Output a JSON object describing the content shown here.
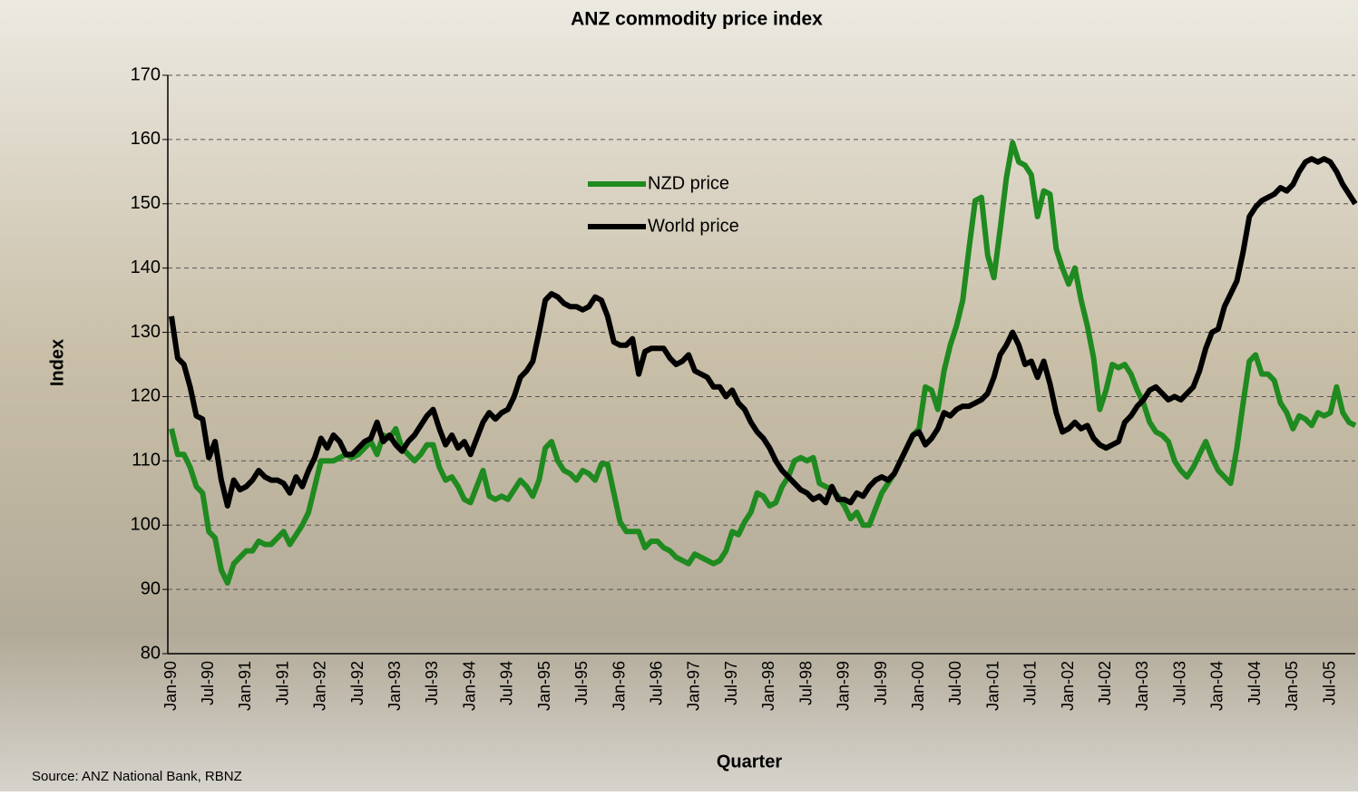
{
  "chart_data": {
    "type": "line",
    "title": "ANZ commodity price index",
    "xlabel": "Quarter",
    "ylabel": "Index",
    "source": "Source: ANZ National Bank, RBNZ",
    "categories": [
      "Jan-90",
      null,
      null,
      null,
      null,
      null,
      "Jul-90",
      null,
      null,
      null,
      null,
      null,
      "Jan-91",
      null,
      null,
      null,
      null,
      null,
      "Jul-91",
      null,
      null,
      null,
      null,
      null,
      "Jan-92",
      null,
      null,
      null,
      null,
      null,
      "Jul-92",
      null,
      null,
      null,
      null,
      null,
      "Jan-93",
      null,
      null,
      null,
      null,
      null,
      "Jul-93",
      null,
      null,
      null,
      null,
      null,
      "Jan-94",
      null,
      null,
      null,
      null,
      null,
      "Jul-94",
      null,
      null,
      null,
      null,
      null,
      "Jan-95",
      null,
      null,
      null,
      null,
      null,
      "Jul-95",
      null,
      null,
      null,
      null,
      null,
      "Jan-96",
      null,
      null,
      null,
      null,
      null,
      "Jul-96",
      null,
      null,
      null,
      null,
      null,
      "Jan-97",
      null,
      null,
      null,
      null,
      null,
      "Jul-97",
      null,
      null,
      null,
      null,
      null,
      "Jan-98",
      null,
      null,
      null,
      null,
      null,
      "Jul-98",
      null,
      null,
      null,
      null,
      null,
      "Jan-99",
      null,
      null,
      null,
      null,
      null,
      "Jul-99",
      null,
      null,
      null,
      null,
      null,
      "Jan-00",
      null,
      null,
      null,
      null,
      null,
      "Jul-00",
      null,
      null,
      null,
      null,
      null,
      "Jan-01",
      null,
      null,
      null,
      null,
      null,
      "Jul-01",
      null,
      null,
      null,
      null,
      null,
      "Jan-02",
      null,
      null,
      null,
      null,
      null,
      "Jul-02",
      null,
      null,
      null,
      null,
      null,
      "Jan-03",
      null,
      null,
      null,
      null,
      null,
      "Jul-03",
      null,
      null,
      null,
      null,
      null,
      "Jan-04",
      null,
      null,
      null,
      null,
      null,
      "Jul-04",
      null,
      null,
      null,
      null,
      null,
      "Jan-05",
      null,
      null,
      null,
      null,
      null,
      "Jul-05",
      null,
      null,
      null,
      null
    ],
    "series": [
      {
        "name": "NZD price",
        "color": "#1f8a1f",
        "values": [
          115,
          111,
          111,
          109,
          106,
          105,
          99,
          98,
          93,
          91,
          94,
          95,
          96,
          96,
          97.5,
          97,
          97,
          98,
          99,
          97,
          98.5,
          100,
          102,
          106,
          110,
          110,
          110,
          110.5,
          111,
          110.5,
          111,
          112,
          113,
          111,
          114,
          113.5,
          115,
          112,
          111,
          110,
          111,
          112.5,
          112.5,
          109,
          107,
          107.5,
          106,
          104,
          103.5,
          106,
          108.5,
          104.5,
          104,
          104.5,
          104,
          105.5,
          107,
          106,
          104.5,
          107,
          112,
          113,
          110,
          108.5,
          108,
          107,
          108.5,
          108,
          107,
          109.5,
          109.5,
          105,
          100.5,
          99,
          99,
          99,
          96.5,
          97.5,
          97.5,
          96.5,
          96,
          95,
          94.5,
          94,
          95.5,
          95,
          94.5,
          94,
          94.5,
          96,
          99,
          98.5,
          100.5,
          102,
          105,
          104.5,
          103,
          103.5,
          106,
          107.5,
          110,
          110.5,
          110,
          110.5,
          106.5,
          106,
          105.5,
          104.5,
          103,
          101,
          102,
          100,
          100,
          102.5,
          105,
          106.5,
          108,
          110,
          112,
          114,
          115,
          121.5,
          121,
          118,
          124,
          128,
          131,
          135,
          143,
          150.5,
          151,
          142,
          138.5,
          146,
          154,
          159.5,
          156.5,
          156,
          154.5,
          148,
          152,
          151.5,
          143,
          140,
          137.5,
          140,
          135,
          131,
          126,
          118,
          121,
          125,
          124.5,
          125,
          123.5,
          121,
          119,
          116,
          114.5,
          114,
          113,
          110,
          108.5,
          107.5,
          109,
          111,
          113,
          110.5,
          108.5,
          107.5,
          106.5,
          112,
          119,
          125.5,
          126.5,
          123.5,
          123.5,
          122.5,
          119,
          117.5,
          115,
          117,
          116.5,
          115.5,
          117.5,
          117,
          117.5,
          121.5,
          117.5,
          116,
          115.5
        ]
      },
      {
        "name": "World price",
        "color": "#000000",
        "values": [
          132.5,
          126,
          125,
          121.5,
          117,
          116.5,
          110.5,
          113,
          107,
          103,
          107,
          105.5,
          106,
          107,
          108.5,
          107.5,
          107,
          107,
          106.5,
          105,
          107.5,
          106,
          108.5,
          110.5,
          113.5,
          112,
          114,
          113,
          111,
          111,
          112,
          113,
          113.5,
          116,
          113,
          114,
          112.5,
          111.5,
          113,
          114,
          115.5,
          117,
          118,
          115,
          112.5,
          114,
          112,
          113,
          111,
          113.5,
          116,
          117.5,
          116.5,
          117.5,
          118,
          120,
          123,
          124,
          125.5,
          130,
          135,
          136,
          135.5,
          134.5,
          134,
          134,
          133.5,
          134,
          135.5,
          135,
          132.5,
          128.5,
          128,
          128,
          129,
          123.5,
          127,
          127.5,
          127.5,
          127.5,
          126,
          125,
          125.5,
          126.5,
          124,
          123.5,
          123,
          121.5,
          121.5,
          120,
          121,
          119,
          118,
          116,
          114.5,
          113.5,
          112,
          110,
          108.5,
          107.5,
          106.5,
          105.5,
          105,
          104,
          104.5,
          103.5,
          106,
          104,
          104,
          103.5,
          105,
          104.5,
          106,
          107,
          107.5,
          107,
          108,
          110,
          112,
          114,
          114.5,
          112.5,
          113.5,
          115,
          117.5,
          117,
          118,
          118.5,
          118.5,
          119,
          119.5,
          120.5,
          123,
          126.5,
          128,
          130,
          128,
          125,
          125.5,
          123,
          125.5,
          122,
          117.5,
          114.5,
          115,
          116,
          115,
          115.5,
          113.5,
          112.5,
          112,
          112.5,
          113,
          116,
          117,
          118.5,
          119.5,
          121,
          121.5,
          120.5,
          119.5,
          120,
          119.5,
          120.5,
          121.5,
          124,
          127.5,
          130,
          130.5,
          134,
          136,
          138,
          142.5,
          148,
          149.5,
          150.5,
          151,
          151.5,
          152.5,
          152,
          153,
          155,
          156.5,
          157,
          156.5,
          157,
          156.5,
          155,
          153,
          151.5,
          150
        ]
      }
    ],
    "ylim": [
      80,
      170
    ],
    "yticks": [
      80,
      90,
      100,
      110,
      120,
      130,
      140,
      150,
      160,
      170
    ],
    "grid": true
  }
}
